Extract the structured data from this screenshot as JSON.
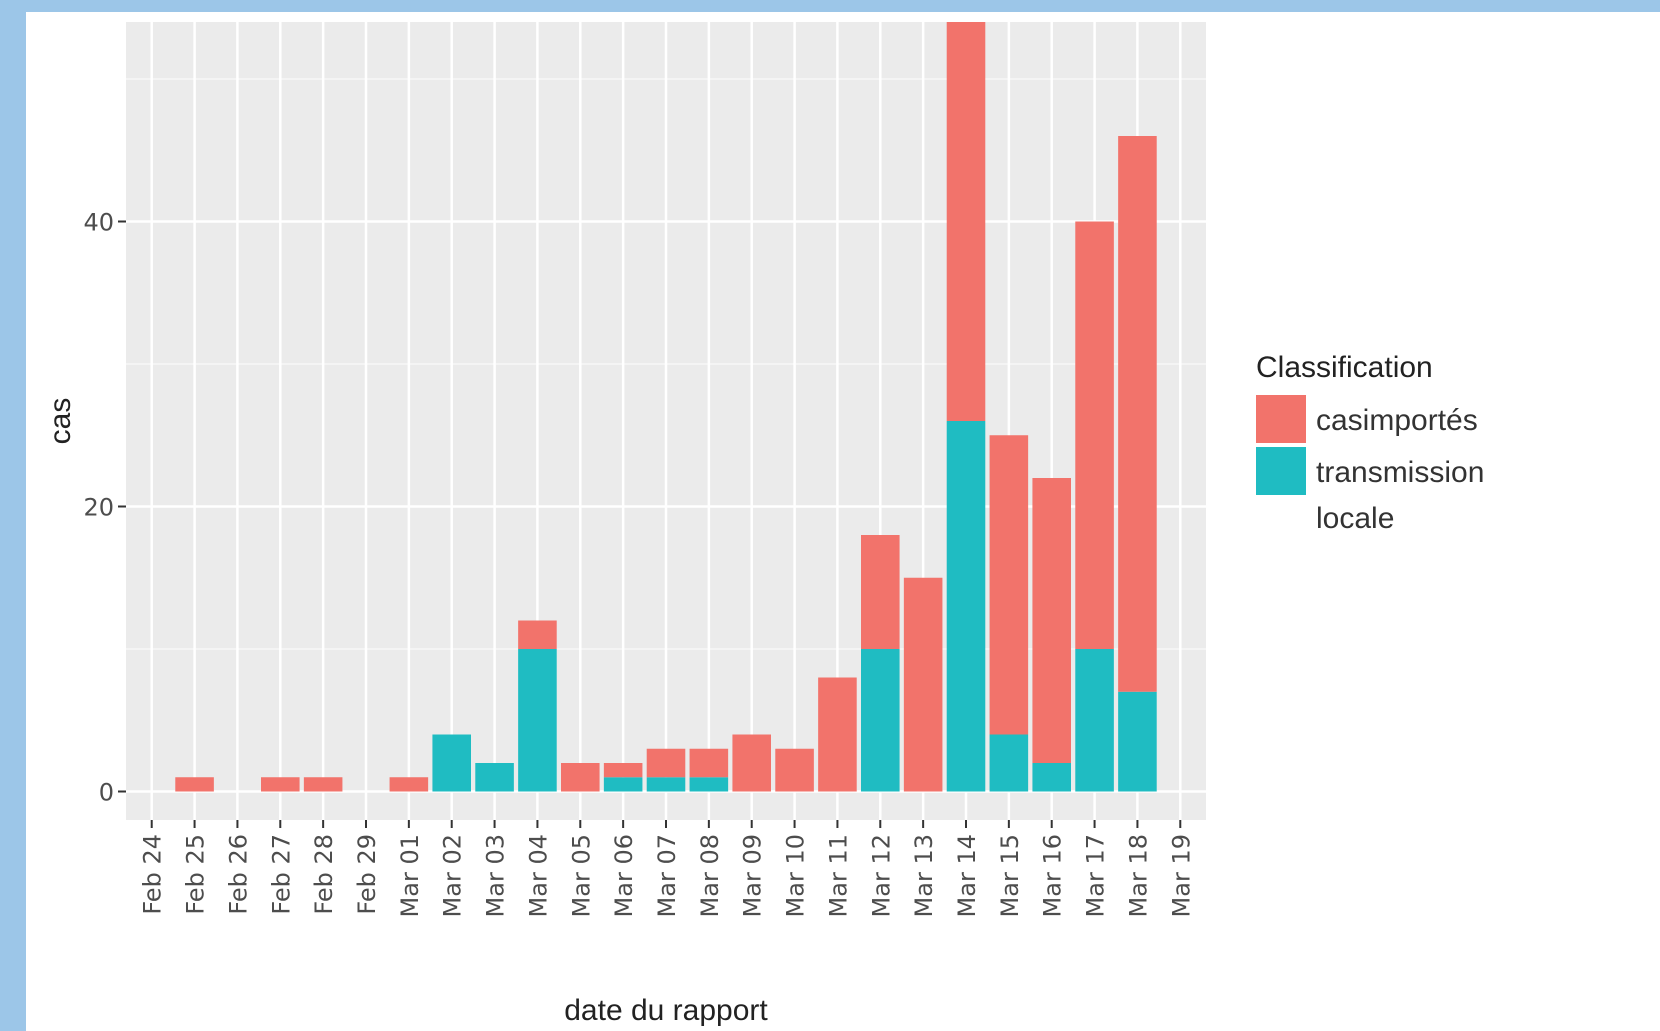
{
  "chart_data": {
    "type": "bar",
    "stacked": true,
    "xlabel": "date du rapport",
    "ylabel": "cas",
    "categories": [
      "Feb 24",
      "Feb 25",
      "Feb 26",
      "Feb 27",
      "Feb 28",
      "Feb 29",
      "Mar 01",
      "Mar 02",
      "Mar 03",
      "Mar 04",
      "Mar 05",
      "Mar 06",
      "Mar 07",
      "Mar 08",
      "Mar 09",
      "Mar 10",
      "Mar 11",
      "Mar 12",
      "Mar 13",
      "Mar 14",
      "Mar 15",
      "Mar 16",
      "Mar 17",
      "Mar 18",
      "Mar 19"
    ],
    "series": [
      {
        "name": "transmission locale",
        "color": "#1fbcc2",
        "values": [
          0,
          0,
          0,
          0,
          0,
          0,
          0,
          4,
          2,
          10,
          0,
          1,
          1,
          1,
          0,
          0,
          0,
          10,
          0,
          26,
          4,
          2,
          10,
          7,
          0
        ]
      },
      {
        "name": "casimportés",
        "color": "#f2736b",
        "values": [
          0,
          1,
          0,
          1,
          1,
          0,
          1,
          0,
          0,
          2,
          2,
          1,
          2,
          2,
          4,
          3,
          8,
          8,
          15,
          28,
          21,
          20,
          30,
          39,
          0
        ]
      }
    ],
    "ylim": [
      -2,
      54
    ],
    "yticks": [
      0,
      20,
      40
    ],
    "legend": {
      "title": "Classification",
      "position": "right"
    },
    "grid": true,
    "panel_color": "#ebebeb"
  }
}
